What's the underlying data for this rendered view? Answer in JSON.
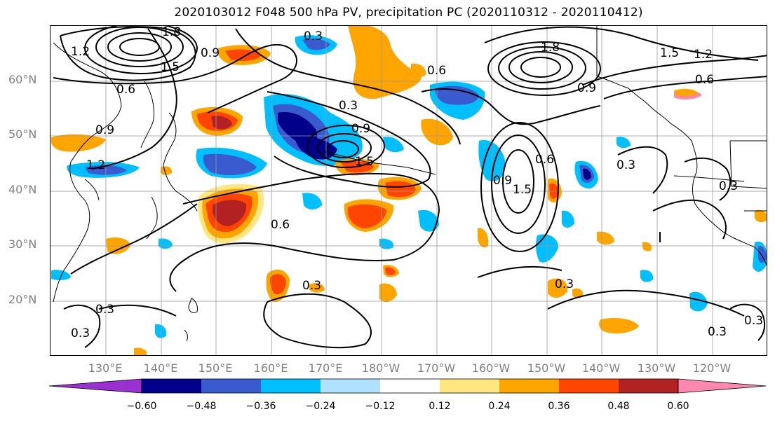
{
  "title": "2020103012 F048 500 hPa PV, precipitation PC (2020110312 - 2020110412)",
  "lat_labels": [
    "60°N",
    "50°N",
    "40°N",
    "30°N",
    "20°N"
  ],
  "lon_labels": [
    "130°E",
    "140°E",
    "150°E",
    "160°E",
    "170°E",
    "180°W",
    "170°W",
    "160°W",
    "150°W",
    "140°W",
    "130°W",
    "120°W"
  ],
  "colorbar": {
    "ticks": [
      "−0.60",
      "−0.48",
      "−0.36",
      "−0.24",
      "−0.12",
      "0.12",
      "0.24",
      "0.36",
      "0.48",
      "0.60"
    ],
    "colors": [
      "#9b30d0",
      "#00008b",
      "#3a5bd0",
      "#00bfff",
      "#b0e2ff",
      "#ffffff",
      "#ffe680",
      "#ffa500",
      "#ff4500",
      "#b22222",
      "#ff88b0"
    ]
  },
  "contour_labels": {
    "c1": "1.2",
    "c2": "0.9",
    "c3": "1.5",
    "c4": "1.8",
    "c5": "0.6",
    "c6": "0.3",
    "c7": "0.9",
    "c8": "0.3",
    "c9": "1.2",
    "c10": "0.6",
    "c11": "0.9",
    "c12": "1.5",
    "c13": "0.3",
    "c14": "0.6",
    "c15": "0.3",
    "c16": "1.8",
    "c17": "1.5",
    "c18": "1.2",
    "c19": "0.6",
    "c20": "0.9",
    "c21": "0.3",
    "c22": "0.3",
    "c23": "0.3",
    "c24": "0.3",
    "c25": "0.6",
    "c26": "0.9",
    "c27": "1.5",
    "c28": "0.3",
    "c29": "0.3"
  }
}
